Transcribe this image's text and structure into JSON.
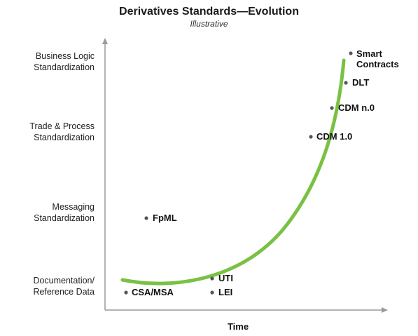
{
  "title": "Derivatives Standards—Evolution",
  "subtitle": "Illustrative",
  "x_axis_label": "Time",
  "y_levels": [
    {
      "line1": "Business Logic",
      "line2": "Standardization"
    },
    {
      "line1": "Trade & Process",
      "line2": "Standardization"
    },
    {
      "line1": "Messaging",
      "line2": "Standardization"
    },
    {
      "line1": "Documentation/",
      "line2": "Reference Data"
    }
  ],
  "points": {
    "smart_line1": "Smart",
    "smart_line2": "Contracts",
    "dlt": "DLT",
    "cdm_n0": "CDM n.0",
    "cdm_10": "CDM 1.0",
    "fpml": "FpML",
    "uti": "UTI",
    "csa_msa": "CSA/MSA",
    "lei": "LEI"
  },
  "colors": {
    "curve": "#7ac143",
    "axis": "#9a9a9a",
    "dot": "#555555"
  }
}
